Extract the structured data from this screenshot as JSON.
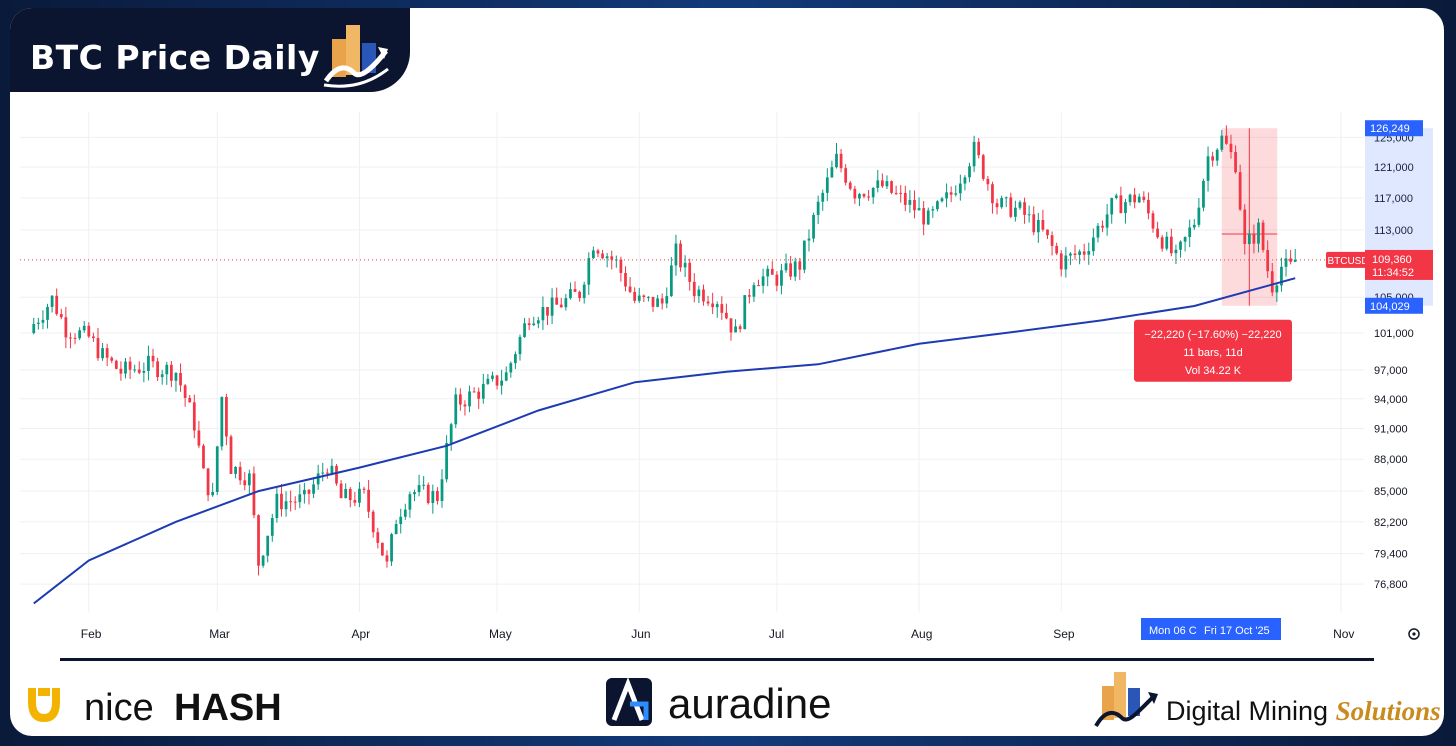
{
  "header": {
    "title": "BTC Price Daily",
    "logo_icon": "digital-mining-solutions-logo"
  },
  "colors": {
    "up": "#089981",
    "down": "#f23645",
    "ma_line": "#1e3bb3",
    "axis_highlight": "#2962ff",
    "current_price": "#f23645",
    "measure_box": "#f23645"
  },
  "chart_data": {
    "type": "candlestick",
    "title": "",
    "x_ticks": [
      "Feb",
      "Mar",
      "Apr",
      "May",
      "Jun",
      "Jul",
      "Aug",
      "Sep",
      "Nov"
    ],
    "y_ticks": [
      76800,
      79400,
      82200,
      85000,
      88000,
      91000,
      94000,
      97000,
      101000,
      105000,
      113000,
      117000,
      121000,
      125000
    ],
    "y_tick_labels": [
      "76,800",
      "79,400",
      "82,200",
      "85,000",
      "88,000",
      "91,000",
      "94,000",
      "97,000",
      "101,000",
      "105,000",
      "113,000",
      "117,000",
      "121,000",
      "125,000"
    ],
    "ylim": [
      74500,
      128500
    ],
    "grid": true,
    "scale": "log",
    "series": [
      {
        "name": "BTCUSD",
        "type": "candlestick",
        "close_path": [
          {
            "date": "2025-01-20",
            "close": 102000
          },
          {
            "date": "2025-01-24",
            "close": 104800
          },
          {
            "date": "2025-01-27",
            "close": 101500
          },
          {
            "date": "2025-02-01",
            "close": 100500
          },
          {
            "date": "2025-02-04",
            "close": 98500
          },
          {
            "date": "2025-02-08",
            "close": 96800
          },
          {
            "date": "2025-02-14",
            "close": 97500
          },
          {
            "date": "2025-02-20",
            "close": 96800
          },
          {
            "date": "2025-02-24",
            "close": 91500
          },
          {
            "date": "2025-02-26",
            "close": 86500
          },
          {
            "date": "2025-02-28",
            "close": 84300
          },
          {
            "date": "2025-03-02",
            "close": 94200
          },
          {
            "date": "2025-03-04",
            "close": 87300
          },
          {
            "date": "2025-03-08",
            "close": 86200
          },
          {
            "date": "2025-03-10",
            "close": 78600
          },
          {
            "date": "2025-03-14",
            "close": 84000
          },
          {
            "date": "2025-03-20",
            "close": 84200
          },
          {
            "date": "2025-03-25",
            "close": 87500
          },
          {
            "date": "2025-03-28",
            "close": 84300
          },
          {
            "date": "2025-04-02",
            "close": 84500
          },
          {
            "date": "2025-04-07",
            "close": 78300
          },
          {
            "date": "2025-04-09",
            "close": 82500
          },
          {
            "date": "2025-04-12",
            "close": 85000
          },
          {
            "date": "2025-04-18",
            "close": 84500
          },
          {
            "date": "2025-04-22",
            "close": 93500
          },
          {
            "date": "2025-04-28",
            "close": 95000
          },
          {
            "date": "2025-05-03",
            "close": 96500
          },
          {
            "date": "2025-05-08",
            "close": 103000
          },
          {
            "date": "2025-05-14",
            "close": 104000
          },
          {
            "date": "2025-05-19",
            "close": 105500
          },
          {
            "date": "2025-05-22",
            "close": 111500
          },
          {
            "date": "2025-05-27",
            "close": 109000
          },
          {
            "date": "2025-05-31",
            "close": 104600
          },
          {
            "date": "2025-06-06",
            "close": 104300
          },
          {
            "date": "2025-06-09",
            "close": 110200
          },
          {
            "date": "2025-06-13",
            "close": 105900
          },
          {
            "date": "2025-06-18",
            "close": 104800
          },
          {
            "date": "2025-06-22",
            "close": 100900
          },
          {
            "date": "2025-06-26",
            "close": 107300
          },
          {
            "date": "2025-07-01",
            "close": 107200
          },
          {
            "date": "2025-07-06",
            "close": 108800
          },
          {
            "date": "2025-07-10",
            "close": 116000
          },
          {
            "date": "2025-07-14",
            "close": 122000
          },
          {
            "date": "2025-07-18",
            "close": 117800
          },
          {
            "date": "2025-07-24",
            "close": 118500
          },
          {
            "date": "2025-07-31",
            "close": 115700
          },
          {
            "date": "2025-08-03",
            "close": 114200
          },
          {
            "date": "2025-08-08",
            "close": 117500
          },
          {
            "date": "2025-08-13",
            "close": 123300
          },
          {
            "date": "2025-08-18",
            "close": 116200
          },
          {
            "date": "2025-08-23",
            "close": 115400
          },
          {
            "date": "2025-08-28",
            "close": 112600
          },
          {
            "date": "2025-09-01",
            "close": 109100
          },
          {
            "date": "2025-09-06",
            "close": 110500
          },
          {
            "date": "2025-09-12",
            "close": 115900
          },
          {
            "date": "2025-09-18",
            "close": 117200
          },
          {
            "date": "2025-09-22",
            "close": 112700
          },
          {
            "date": "2025-09-26",
            "close": 109400
          },
          {
            "date": "2025-09-30",
            "close": 114000
          },
          {
            "date": "2025-10-03",
            "close": 122400
          },
          {
            "date": "2025-10-06",
            "close": 124800
          },
          {
            "date": "2025-10-09",
            "close": 121600
          },
          {
            "date": "2025-10-11",
            "close": 110700
          },
          {
            "date": "2025-10-14",
            "close": 113100
          },
          {
            "date": "2025-10-16",
            "close": 108200
          },
          {
            "date": "2025-10-17",
            "close": 106400
          },
          {
            "date": "2025-10-19",
            "close": 108600
          },
          {
            "date": "2025-10-21",
            "close": 108400
          },
          {
            "date": "2025-10-22",
            "close": 109360
          }
        ]
      },
      {
        "name": "moving-average",
        "type": "line",
        "points": [
          {
            "date": "2025-01-20",
            "value": 75200
          },
          {
            "date": "2025-02-01",
            "value": 78800
          },
          {
            "date": "2025-02-20",
            "value": 82200
          },
          {
            "date": "2025-03-10",
            "value": 85000
          },
          {
            "date": "2025-04-01",
            "value": 87200
          },
          {
            "date": "2025-04-20",
            "value": 89300
          },
          {
            "date": "2025-05-10",
            "value": 92800
          },
          {
            "date": "2025-05-31",
            "value": 95700
          },
          {
            "date": "2025-06-20",
            "value": 96800
          },
          {
            "date": "2025-07-10",
            "value": 97600
          },
          {
            "date": "2025-08-01",
            "value": 99800
          },
          {
            "date": "2025-08-20",
            "value": 101000
          },
          {
            "date": "2025-09-10",
            "value": 102400
          },
          {
            "date": "2025-09-30",
            "value": 104000
          },
          {
            "date": "2025-10-22",
            "value": 107200
          }
        ]
      }
    ],
    "current_price": {
      "symbol": "BTCUSD",
      "price": "109,360",
      "countdown": "11:34:52"
    },
    "measure_range": {
      "high_label": "126,249",
      "low_label": "104,029",
      "high": 126249,
      "low": 104029,
      "line1": "−22,220 (−17.60%) −22,220",
      "line2": "11 bars, 11d",
      "line3": "Vol 34.22 K"
    },
    "x_range_labels": [
      "Mon 06 C",
      "Fri 17 Oct '25"
    ]
  },
  "footer": {
    "nicehash_logo": "NICEHASH",
    "nicehash_prefix": "nice",
    "nicehash_suffix": "HASH",
    "auradine_text": "auradine",
    "dms_prefix": "Digital Mining ",
    "dms_suffix": "Solutions"
  }
}
